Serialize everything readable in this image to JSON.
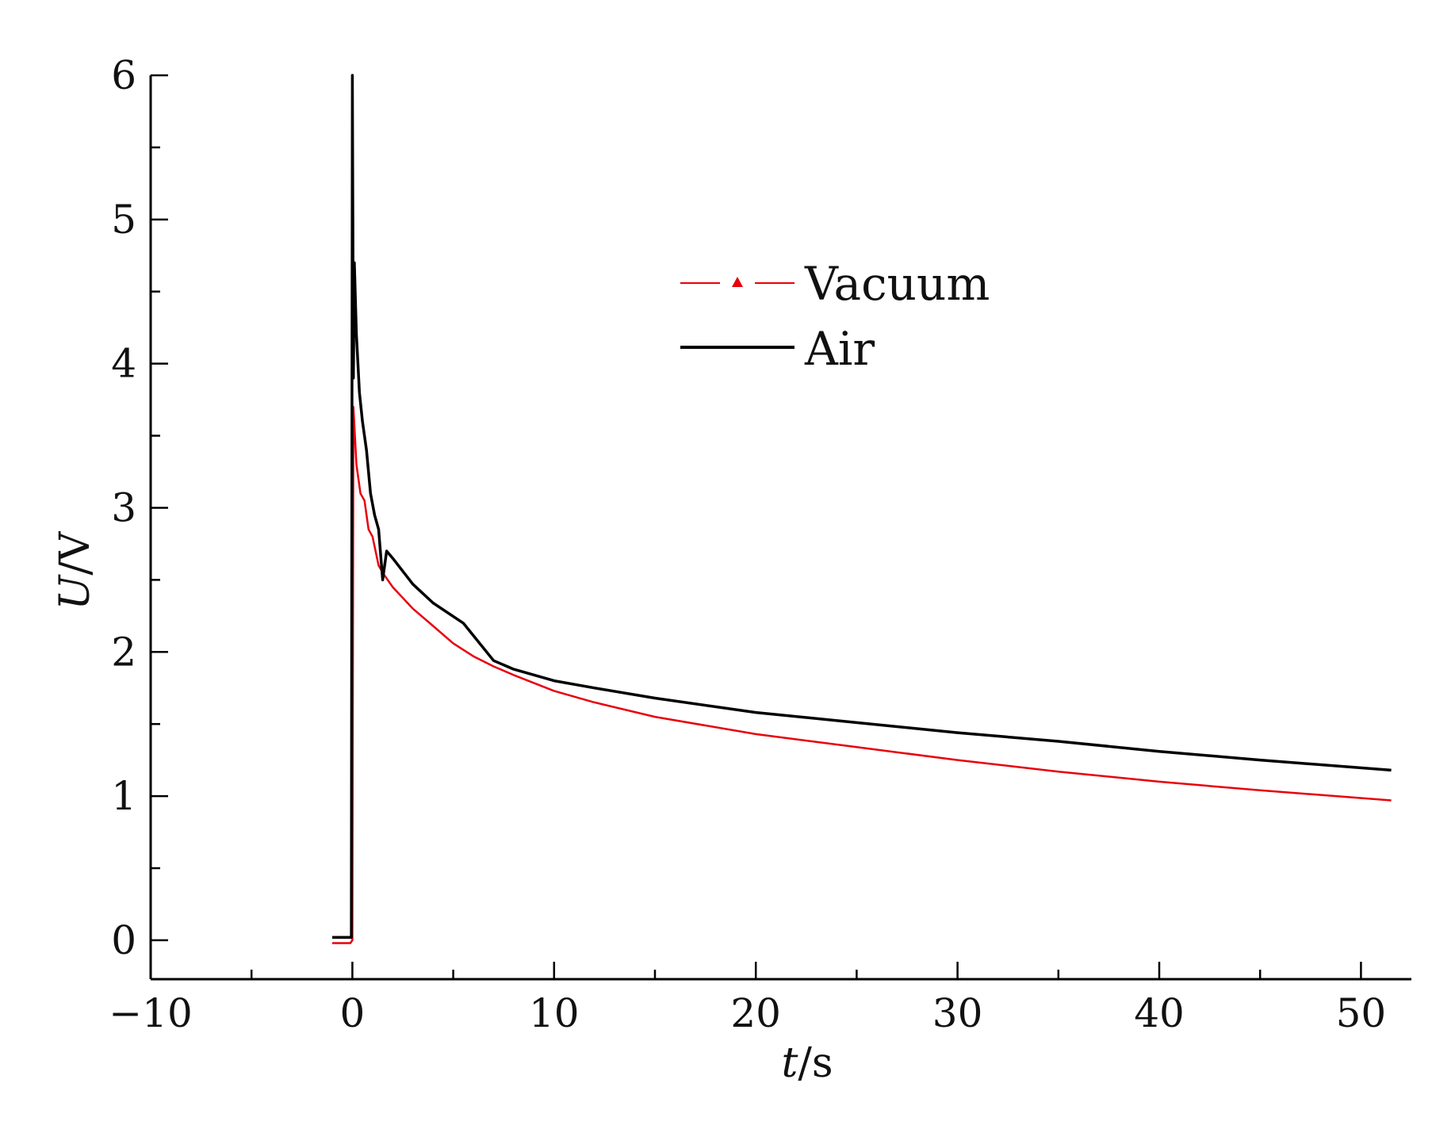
{
  "chart_data": {
    "type": "line",
    "title": "",
    "xlabel": {
      "italic": "t",
      "rest": "/s"
    },
    "ylabel": {
      "italic": "U",
      "rest": "/V"
    },
    "xlim": [
      -10,
      52.5
    ],
    "ylim": [
      -0.27,
      6
    ],
    "xticks": [
      -10,
      0,
      10,
      20,
      30,
      40,
      50
    ],
    "xtick_labels": [
      "−10",
      "0",
      "10",
      "20",
      "30",
      "40",
      "50"
    ],
    "yticks": [
      0,
      1,
      2,
      3,
      4,
      5,
      6
    ],
    "ytick_labels": [
      "0",
      "1",
      "2",
      "3",
      "4",
      "5",
      "6"
    ],
    "xminor_step": 5,
    "yminor_step": 0.5,
    "grid": false,
    "legend_position": "upper-center",
    "series": [
      {
        "name": "Vacuum",
        "color": "#e8000b",
        "marker": "triangle",
        "points": [
          [
            -1,
            -0.02
          ],
          [
            -0.1,
            -0.02
          ],
          [
            0,
            0.0
          ],
          [
            0.05,
            3.7
          ],
          [
            0.2,
            3.3
          ],
          [
            0.4,
            3.1
          ],
          [
            0.6,
            3.05
          ],
          [
            0.8,
            2.85
          ],
          [
            1.0,
            2.8
          ],
          [
            1.3,
            2.6
          ],
          [
            1.5,
            2.55
          ],
          [
            2.0,
            2.45
          ],
          [
            3.0,
            2.3
          ],
          [
            4.0,
            2.18
          ],
          [
            5.0,
            2.06
          ],
          [
            6.0,
            1.97
          ],
          [
            7.0,
            1.9
          ],
          [
            8.0,
            1.84
          ],
          [
            10.0,
            1.73
          ],
          [
            12.0,
            1.65
          ],
          [
            15.0,
            1.55
          ],
          [
            20.0,
            1.43
          ],
          [
            25.0,
            1.34
          ],
          [
            30.0,
            1.25
          ],
          [
            35.0,
            1.17
          ],
          [
            40.0,
            1.1
          ],
          [
            45.0,
            1.04
          ],
          [
            51.5,
            0.97
          ]
        ]
      },
      {
        "name": "Air",
        "color": "#000000",
        "marker": "none",
        "points": [
          [
            -1,
            0.02
          ],
          [
            -0.05,
            0.02
          ],
          [
            0,
            6.0
          ],
          [
            0.05,
            3.9
          ],
          [
            0.1,
            4.7
          ],
          [
            0.2,
            4.2
          ],
          [
            0.35,
            3.8
          ],
          [
            0.5,
            3.6
          ],
          [
            0.7,
            3.4
          ],
          [
            0.9,
            3.1
          ],
          [
            1.1,
            2.95
          ],
          [
            1.3,
            2.85
          ],
          [
            1.5,
            2.5
          ],
          [
            1.7,
            2.7
          ],
          [
            2.0,
            2.65
          ],
          [
            3.0,
            2.47
          ],
          [
            4.0,
            2.34
          ],
          [
            5.5,
            2.2
          ],
          [
            7.0,
            1.94
          ],
          [
            8.0,
            1.88
          ],
          [
            10.0,
            1.8
          ],
          [
            12.0,
            1.75
          ],
          [
            15.0,
            1.68
          ],
          [
            20.0,
            1.58
          ],
          [
            25.0,
            1.51
          ],
          [
            30.0,
            1.44
          ],
          [
            35.0,
            1.38
          ],
          [
            40.0,
            1.31
          ],
          [
            45.0,
            1.25
          ],
          [
            51.5,
            1.18
          ]
        ]
      }
    ]
  }
}
